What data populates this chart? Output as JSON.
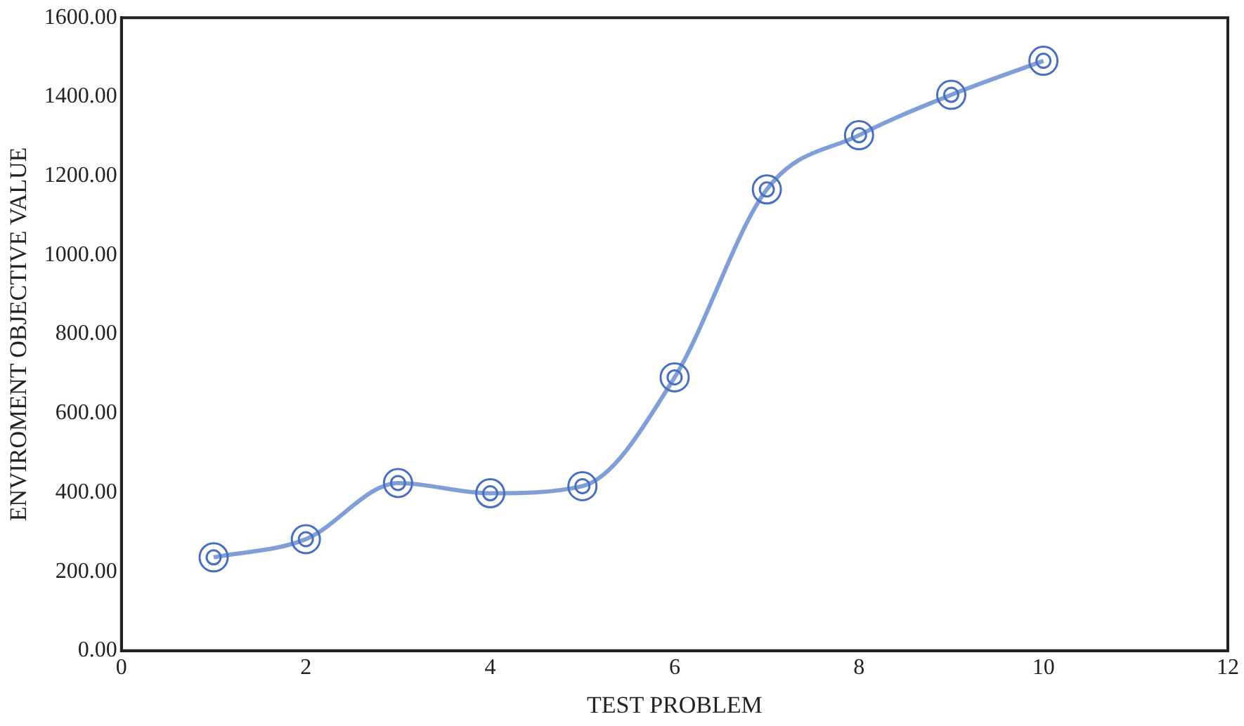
{
  "chart_data": {
    "type": "line",
    "xlabel": "TEST PROBLEM",
    "ylabel": "ENVIROMENT OBJECTIVE VALUE",
    "marker": "circle",
    "line_style": "solid",
    "x": [
      1,
      2,
      3,
      4,
      5,
      6,
      7,
      8,
      9,
      10
    ],
    "series": [
      {
        "color": "#7f9fd6",
        "values": [
          236,
          282,
          424,
          398,
          416,
          691,
          1166,
          1303,
          1405,
          1491
        ]
      }
    ],
    "xlim": [
      0,
      12
    ],
    "xticks": [
      0,
      2,
      4,
      6,
      8,
      10,
      12
    ],
    "ylim": [
      0,
      1600
    ],
    "yticks": [
      {
        "value": 0,
        "label": "0.00"
      },
      {
        "value": 200,
        "label": "200.00"
      },
      {
        "value": 400,
        "label": "400.00"
      },
      {
        "value": 600,
        "label": "600.00"
      },
      {
        "value": 800,
        "label": "800.00"
      },
      {
        "value": 1000,
        "label": "1000.00"
      },
      {
        "value": 1200,
        "label": "1200.00"
      },
      {
        "value": 1400,
        "label": "1400.00"
      },
      {
        "value": 1600,
        "label": "1600.00"
      }
    ]
  }
}
